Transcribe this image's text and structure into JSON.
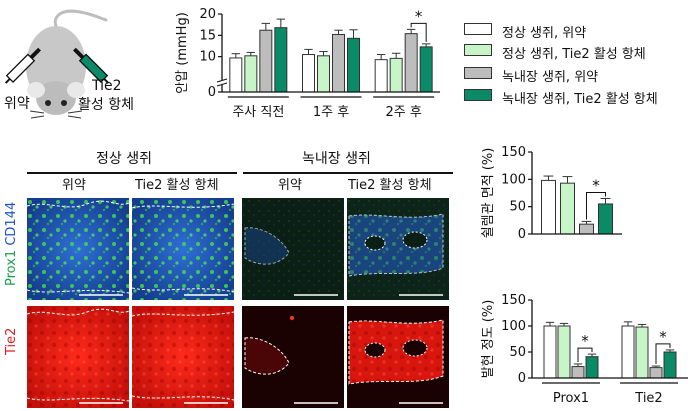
{
  "colors": {
    "vehicle": "#ffffff",
    "normal_tie2": "#c8f5c8",
    "glaucoma_vehicle": "#bdbdbd",
    "glaucoma_tie2": "#0a8a66",
    "prox1_label": "#16a34a",
    "cd144_label": "#1f4fd1",
    "tie2_label": "#e11d1d"
  },
  "mouse": {
    "vehicle_label": "위약",
    "tie2_label": "Tie2",
    "antibody_label": "활성 항체"
  },
  "legend": [
    {
      "label": "정상 생쥐, 위약",
      "color": "#ffffff"
    },
    {
      "label": "정상 생쥐, Tie2 활성 항체",
      "color": "#c8f5c8"
    },
    {
      "label": "녹내장 생쥐, 위약",
      "color": "#bdbdbd"
    },
    {
      "label": "녹내장 생쥐, Tie2 활성 항체",
      "color": "#0a8a66"
    }
  ],
  "microscopy": {
    "group_normal": "정상 생쥐",
    "group_glaucoma": "녹내장 생쥐",
    "col_labels": [
      "위약",
      "Tie2 활성 항체",
      "위약",
      "Tie2 활성 항체"
    ],
    "row_label_prox1": "Prox1",
    "row_label_cd144": "CD144",
    "row_label_tie2": "Tie2"
  },
  "chart_data": [
    {
      "type": "bar",
      "ylabel": "안압 (mmHg)",
      "categories": [
        "주사 직전",
        "1주 후",
        "2주 후"
      ],
      "yticks": [
        0,
        10,
        15,
        20
      ],
      "ylim": [
        0,
        20
      ],
      "axis_break": true,
      "series": [
        {
          "name": "정상 생쥐, 위약",
          "values": [
            9.7,
            10.5,
            9.3
          ],
          "errors": [
            1.0,
            1.2,
            1.2
          ]
        },
        {
          "name": "정상 생쥐, Tie2 활성 항체",
          "values": [
            10.2,
            10.2,
            9.6
          ],
          "errors": [
            0.8,
            1.0,
            1.2
          ]
        },
        {
          "name": "녹내장 생쥐, 위약",
          "values": [
            16.2,
            15.2,
            15.4
          ],
          "errors": [
            1.6,
            1.0,
            1.0
          ]
        },
        {
          "name": "녹내장 생쥐, Tie2 활성 항체",
          "values": [
            16.8,
            14.3,
            12.3
          ],
          "errors": [
            2.0,
            2.0,
            0.7
          ]
        }
      ],
      "significance": [
        {
          "category": "2주 후",
          "label": "*"
        }
      ]
    },
    {
      "type": "bar",
      "ylabel": "쉴렘관 면적 (%)",
      "categories": [
        ""
      ],
      "yticks": [
        0,
        50,
        100,
        150
      ],
      "ylim": [
        0,
        150
      ],
      "series": [
        {
          "name": "정상 생쥐, 위약",
          "values": [
            98
          ],
          "errors": [
            8
          ]
        },
        {
          "name": "정상 생쥐, Tie2 활성 항체",
          "values": [
            93
          ],
          "errors": [
            12
          ]
        },
        {
          "name": "녹내장 생쥐, 위약",
          "values": [
            18
          ],
          "errors": [
            5
          ]
        },
        {
          "name": "녹내장 생쥐, Tie2 활성 항체",
          "values": [
            55
          ],
          "errors": [
            10
          ]
        }
      ],
      "significance": [
        {
          "label": "*"
        }
      ]
    },
    {
      "type": "bar",
      "ylabel": "발현 정도 (%)",
      "categories": [
        "Prox1",
        "Tie2"
      ],
      "yticks": [
        0,
        50,
        100,
        150
      ],
      "ylim": [
        0,
        150
      ],
      "series": [
        {
          "name": "정상 생쥐, 위약",
          "values": [
            100,
            100
          ],
          "errors": [
            7,
            8
          ]
        },
        {
          "name": "정상 생쥐, Tie2 활성 항체",
          "values": [
            100,
            98
          ],
          "errors": [
            5,
            5
          ]
        },
        {
          "name": "녹내장 생쥐, 위약",
          "values": [
            22,
            20
          ],
          "errors": [
            5,
            3
          ]
        },
        {
          "name": "녹내장 생쥐, Tie2 활성 항체",
          "values": [
            41,
            50
          ],
          "errors": [
            5,
            4
          ]
        }
      ],
      "significance": [
        {
          "category": "Prox1",
          "label": "*"
        },
        {
          "category": "Tie2",
          "label": "*"
        }
      ]
    }
  ]
}
